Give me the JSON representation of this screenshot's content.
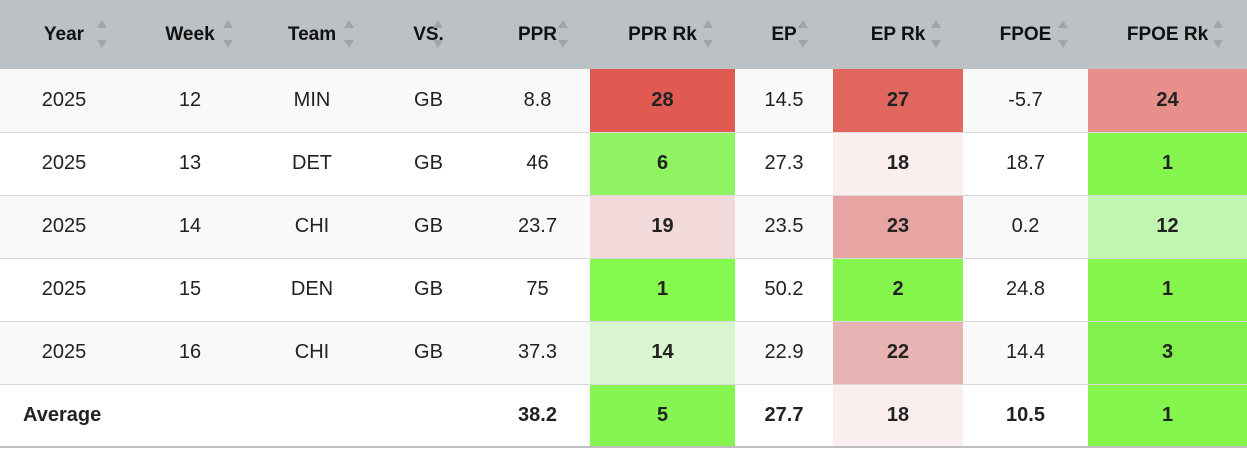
{
  "columns": [
    "Year",
    "Week",
    "Team",
    "VS.",
    "PPR",
    "PPR Rk",
    "EP",
    "EP Rk",
    "FPOE",
    "FPOE Rk"
  ],
  "rows": [
    {
      "year": "2025",
      "week": "12",
      "team": "MIN",
      "vs": "GB",
      "ppr": "8.8",
      "ppr_rk": "28",
      "ep": "14.5",
      "ep_rk": "27",
      "fpoe": "-5.7",
      "fpoe_rk": "24"
    },
    {
      "year": "2025",
      "week": "13",
      "team": "DET",
      "vs": "GB",
      "ppr": "46",
      "ppr_rk": "6",
      "ep": "27.3",
      "ep_rk": "18",
      "fpoe": "18.7",
      "fpoe_rk": "1"
    },
    {
      "year": "2025",
      "week": "14",
      "team": "CHI",
      "vs": "GB",
      "ppr": "23.7",
      "ppr_rk": "19",
      "ep": "23.5",
      "ep_rk": "23",
      "fpoe": "0.2",
      "fpoe_rk": "12"
    },
    {
      "year": "2025",
      "week": "15",
      "team": "DEN",
      "vs": "GB",
      "ppr": "75",
      "ppr_rk": "1",
      "ep": "50.2",
      "ep_rk": "2",
      "fpoe": "24.8",
      "fpoe_rk": "1"
    },
    {
      "year": "2025",
      "week": "16",
      "team": "CHI",
      "vs": "GB",
      "ppr": "37.3",
      "ppr_rk": "14",
      "ep": "22.9",
      "ep_rk": "22",
      "fpoe": "14.4",
      "fpoe_rk": "3"
    }
  ],
  "average": {
    "label": "Average",
    "ppr": "38.2",
    "ppr_rk": "5",
    "ep": "27.7",
    "ep_rk": "18",
    "fpoe": "10.5",
    "fpoe_rk": "1"
  },
  "rank_colors": {
    "rows": [
      {
        "ppr_rk": "#e05a52",
        "ep_rk": "#e16660",
        "fpoe_rk": "#e68f8b"
      },
      {
        "ppr_rk": "#90f462",
        "ep_rk": "#fbeeee",
        "fpoe_rk": "#84f64d"
      },
      {
        "ppr_rk": "#f2dada",
        "ep_rk": "#e6a4a2",
        "fpoe_rk": "#c2f5b1"
      },
      {
        "ppr_rk": "#84f84d",
        "ep_rk": "#84f64e",
        "fpoe_rk": "#84f64d"
      },
      {
        "ppr_rk": "#d9f5d0",
        "ep_rk": "#e8b4b3",
        "fpoe_rk": "#84f04e"
      }
    ],
    "average": {
      "ppr_rk": "#86f552",
      "ep_rk": "#fbeeee",
      "fpoe_rk": "#84f64d"
    }
  },
  "icons": {
    "sort": "sort-arrows-icon"
  }
}
